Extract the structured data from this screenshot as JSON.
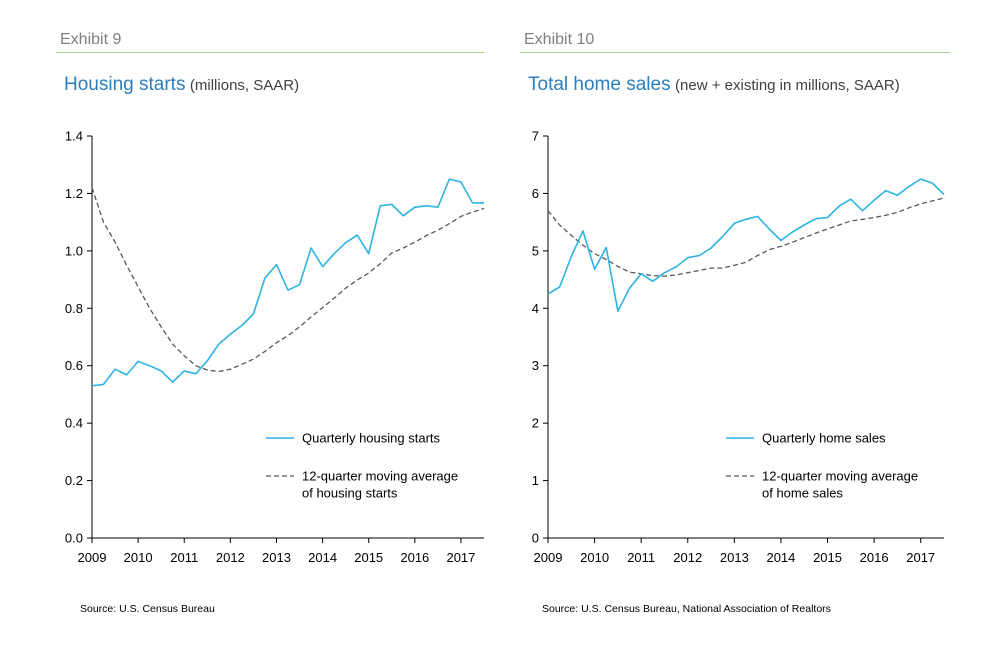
{
  "chart_data": [
    {
      "type": "line",
      "exhibit": "Exhibit 9",
      "title": "Housing starts",
      "subtitle": "(millions, SAAR)",
      "xlabel": "",
      "ylabel": "",
      "xlim": [
        2009,
        2017.5
      ],
      "ylim": [
        0,
        1.4
      ],
      "y_ticks": [
        "0.0",
        "0.2",
        "0.4",
        "0.6",
        "0.8",
        "1.0",
        "1.2",
        "1.4"
      ],
      "x_ticks": [
        "2009",
        "2010",
        "2011",
        "2012",
        "2013",
        "2014",
        "2015",
        "2016",
        "2017"
      ],
      "grid": false,
      "legend_position": "bottom-right",
      "series": [
        {
          "name": "Quarterly housing starts",
          "style": "solid",
          "color": "#2db4e3",
          "points": [
            [
              2009.0,
              0.53
            ],
            [
              2009.25,
              0.535
            ],
            [
              2009.5,
              0.588
            ],
            [
              2009.75,
              0.568
            ],
            [
              2010.0,
              0.615
            ],
            [
              2010.25,
              0.6
            ],
            [
              2010.5,
              0.582
            ],
            [
              2010.75,
              0.543
            ],
            [
              2011.0,
              0.582
            ],
            [
              2011.25,
              0.572
            ],
            [
              2011.5,
              0.617
            ],
            [
              2011.75,
              0.675
            ],
            [
              2012.0,
              0.71
            ],
            [
              2012.25,
              0.74
            ],
            [
              2012.5,
              0.78
            ],
            [
              2012.75,
              0.905
            ],
            [
              2013.0,
              0.952
            ],
            [
              2013.25,
              0.863
            ],
            [
              2013.5,
              0.882
            ],
            [
              2013.75,
              1.01
            ],
            [
              2014.0,
              0.945
            ],
            [
              2014.25,
              0.99
            ],
            [
              2014.5,
              1.028
            ],
            [
              2014.75,
              1.055
            ],
            [
              2015.0,
              0.99
            ],
            [
              2015.25,
              1.157
            ],
            [
              2015.5,
              1.162
            ],
            [
              2015.75,
              1.122
            ],
            [
              2016.0,
              1.152
            ],
            [
              2016.25,
              1.157
            ],
            [
              2016.5,
              1.152
            ],
            [
              2016.75,
              1.25
            ],
            [
              2017.0,
              1.24
            ],
            [
              2017.25,
              1.167
            ],
            [
              2017.5,
              1.167
            ]
          ]
        },
        {
          "name": "12-quarter moving average of housing starts",
          "style": "dashed",
          "color": "#595959",
          "points": [
            [
              2009.0,
              1.22
            ],
            [
              2009.25,
              1.1
            ],
            [
              2009.5,
              1.03
            ],
            [
              2009.75,
              0.95
            ],
            [
              2010.0,
              0.875
            ],
            [
              2010.25,
              0.8
            ],
            [
              2010.5,
              0.735
            ],
            [
              2010.75,
              0.675
            ],
            [
              2011.0,
              0.635
            ],
            [
              2011.25,
              0.6
            ],
            [
              2011.5,
              0.585
            ],
            [
              2011.75,
              0.58
            ],
            [
              2012.0,
              0.588
            ],
            [
              2012.25,
              0.605
            ],
            [
              2012.5,
              0.623
            ],
            [
              2012.75,
              0.65
            ],
            [
              2013.0,
              0.68
            ],
            [
              2013.25,
              0.705
            ],
            [
              2013.5,
              0.735
            ],
            [
              2013.75,
              0.77
            ],
            [
              2014.0,
              0.802
            ],
            [
              2014.25,
              0.835
            ],
            [
              2014.5,
              0.87
            ],
            [
              2014.75,
              0.898
            ],
            [
              2015.0,
              0.923
            ],
            [
              2015.25,
              0.955
            ],
            [
              2015.5,
              0.993
            ],
            [
              2015.75,
              1.01
            ],
            [
              2016.0,
              1.03
            ],
            [
              2016.25,
              1.053
            ],
            [
              2016.5,
              1.072
            ],
            [
              2016.75,
              1.095
            ],
            [
              2017.0,
              1.12
            ],
            [
              2017.25,
              1.135
            ],
            [
              2017.5,
              1.148
            ]
          ]
        }
      ],
      "legend": [
        {
          "label_lines": [
            "Quarterly housing starts"
          ],
          "style": "solid"
        },
        {
          "label_lines": [
            "12-quarter moving average",
            "of housing starts"
          ],
          "style": "dashed"
        }
      ],
      "source": "Source: U.S. Census Bureau"
    },
    {
      "type": "line",
      "exhibit": "Exhibit 10",
      "title": "Total home sales",
      "subtitle": "(new + existing in millions, SAAR)",
      "xlabel": "",
      "ylabel": "",
      "xlim": [
        2009,
        2017.5
      ],
      "ylim": [
        0,
        7
      ],
      "y_ticks": [
        "0",
        "1",
        "2",
        "3",
        "4",
        "5",
        "6",
        "7"
      ],
      "x_ticks": [
        "2009",
        "2010",
        "2011",
        "2012",
        "2013",
        "2014",
        "2015",
        "2016",
        "2017"
      ],
      "grid": false,
      "legend_position": "bottom-right",
      "series": [
        {
          "name": "Quarterly home sales",
          "style": "solid",
          "color": "#2db4e3",
          "points": [
            [
              2009.0,
              4.25
            ],
            [
              2009.25,
              4.37
            ],
            [
              2009.5,
              4.9
            ],
            [
              2009.75,
              5.35
            ],
            [
              2010.0,
              4.68
            ],
            [
              2010.25,
              5.06
            ],
            [
              2010.5,
              3.95
            ],
            [
              2010.75,
              4.35
            ],
            [
              2011.0,
              4.6
            ],
            [
              2011.25,
              4.47
            ],
            [
              2011.5,
              4.62
            ],
            [
              2011.75,
              4.72
            ],
            [
              2012.0,
              4.88
            ],
            [
              2012.25,
              4.92
            ],
            [
              2012.5,
              5.05
            ],
            [
              2012.75,
              5.25
            ],
            [
              2013.0,
              5.48
            ],
            [
              2013.25,
              5.55
            ],
            [
              2013.5,
              5.6
            ],
            [
              2013.75,
              5.38
            ],
            [
              2014.0,
              5.18
            ],
            [
              2014.25,
              5.33
            ],
            [
              2014.5,
              5.45
            ],
            [
              2014.75,
              5.56
            ],
            [
              2015.0,
              5.58
            ],
            [
              2015.25,
              5.78
            ],
            [
              2015.5,
              5.9
            ],
            [
              2015.75,
              5.7
            ],
            [
              2016.0,
              5.88
            ],
            [
              2016.25,
              6.05
            ],
            [
              2016.5,
              5.97
            ],
            [
              2016.75,
              6.12
            ],
            [
              2017.0,
              6.25
            ],
            [
              2017.25,
              6.18
            ],
            [
              2017.5,
              5.98
            ]
          ]
        },
        {
          "name": "12-quarter moving average of home sales",
          "style": "dashed",
          "color": "#595959",
          "points": [
            [
              2009.0,
              5.7
            ],
            [
              2009.25,
              5.45
            ],
            [
              2009.5,
              5.27
            ],
            [
              2009.75,
              5.1
            ],
            [
              2010.0,
              4.95
            ],
            [
              2010.25,
              4.85
            ],
            [
              2010.5,
              4.73
            ],
            [
              2010.75,
              4.63
            ],
            [
              2011.0,
              4.6
            ],
            [
              2011.25,
              4.57
            ],
            [
              2011.5,
              4.56
            ],
            [
              2011.75,
              4.58
            ],
            [
              2012.0,
              4.62
            ],
            [
              2012.25,
              4.66
            ],
            [
              2012.5,
              4.7
            ],
            [
              2012.75,
              4.7
            ],
            [
              2013.0,
              4.75
            ],
            [
              2013.25,
              4.8
            ],
            [
              2013.5,
              4.92
            ],
            [
              2013.75,
              5.02
            ],
            [
              2014.0,
              5.08
            ],
            [
              2014.25,
              5.15
            ],
            [
              2014.5,
              5.23
            ],
            [
              2014.75,
              5.31
            ],
            [
              2015.0,
              5.38
            ],
            [
              2015.25,
              5.45
            ],
            [
              2015.5,
              5.52
            ],
            [
              2015.75,
              5.55
            ],
            [
              2016.0,
              5.58
            ],
            [
              2016.25,
              5.62
            ],
            [
              2016.5,
              5.67
            ],
            [
              2016.75,
              5.75
            ],
            [
              2017.0,
              5.82
            ],
            [
              2017.25,
              5.87
            ],
            [
              2017.5,
              5.92
            ]
          ]
        }
      ],
      "legend": [
        {
          "label_lines": [
            "Quarterly home sales"
          ],
          "style": "solid"
        },
        {
          "label_lines": [
            "12-quarter moving average",
            "of home sales"
          ],
          "style": "dashed"
        }
      ],
      "source": "Source: U.S. Census Bureau, National Association of Realtors"
    }
  ]
}
